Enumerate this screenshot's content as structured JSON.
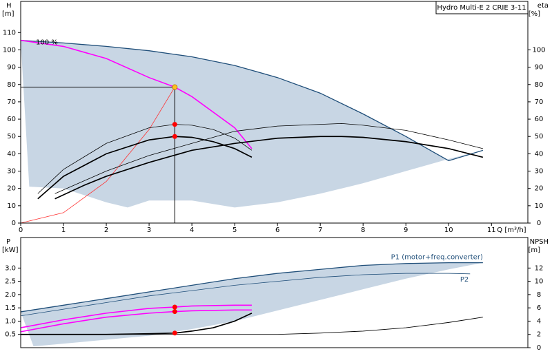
{
  "chart_data": [
    {
      "type": "line",
      "title": "Hydro Multi-E 2 CRIE 3-11",
      "x_label": "Q [m³/h]",
      "y_label": "H",
      "y_unit": "[m]",
      "y2_label": "eta",
      "y2_unit": "[%]",
      "annotation": "100 %",
      "xlim": [
        0,
        11.85
      ],
      "xticks": [
        0,
        1,
        2,
        3,
        4,
        5,
        6,
        7,
        8,
        9,
        10,
        11
      ],
      "ylim": [
        0,
        128
      ],
      "yticks": [
        0,
        10,
        20,
        30,
        40,
        50,
        60,
        70,
        80,
        90,
        100,
        110
      ],
      "y2lim": [
        0,
        128
      ],
      "y2ticks": [
        0,
        10,
        20,
        30,
        40,
        50,
        60,
        70,
        80,
        90,
        100
      ],
      "grid": false,
      "series": [
        {
          "color": "#1f4e79",
          "width": 1.3,
          "band_color": "#c8d6e4",
          "x": [
            0,
            1,
            2,
            3,
            4,
            5,
            6,
            7,
            8,
            9,
            10,
            10.8
          ],
          "values": [
            105.5,
            104,
            102,
            99.5,
            96,
            91,
            84,
            75,
            63,
            50,
            36,
            42
          ],
          "band_x": [
            0.2,
            1,
            2,
            2.5,
            3,
            4,
            5,
            6,
            7,
            8,
            9,
            10,
            10.8
          ],
          "band_lower": [
            21,
            20,
            12,
            9,
            13,
            13,
            9,
            12,
            17,
            23,
            30,
            37,
            42
          ]
        },
        {
          "color": "#ff00ff",
          "width": 1.6,
          "x": [
            0,
            1,
            2,
            3,
            3.6,
            4,
            5,
            5.4
          ],
          "values": [
            105.5,
            102,
            95,
            84,
            78.5,
            73,
            55,
            43
          ]
        },
        {
          "color": "#ff3030",
          "width": 0.8,
          "x": [
            0,
            1,
            2,
            3,
            3.6
          ],
          "values": [
            0,
            6,
            24,
            54,
            78.5
          ]
        },
        {
          "color": "#000000",
          "width": 1.7,
          "axis": "y2",
          "x": [
            0.4,
            1,
            2,
            3,
            3.6,
            4,
            4.5,
            5,
            5.4
          ],
          "values": [
            14,
            27,
            40,
            48,
            50,
            49.5,
            47,
            43,
            38
          ]
        },
        {
          "color": "#000000",
          "width": 0.8,
          "axis": "y2",
          "x": [
            0.4,
            1,
            2,
            3,
            3.6,
            4,
            4.5,
            5,
            5.4
          ],
          "values": [
            17,
            31,
            46,
            55,
            57,
            56.5,
            54,
            49,
            42
          ]
        },
        {
          "color": "#000000",
          "width": 1.7,
          "axis": "y2",
          "x": [
            0.8,
            1.5,
            2,
            3,
            4,
            5,
            6,
            7,
            7.5,
            8,
            9,
            10,
            10.8
          ],
          "values": [
            14,
            22,
            27,
            35,
            42,
            46,
            49,
            50,
            50,
            49.5,
            47,
            43,
            38
          ]
        },
        {
          "color": "#000000",
          "width": 0.8,
          "axis": "y2",
          "x": [
            0.8,
            2,
            3,
            4,
            5,
            6,
            7,
            7.5,
            8,
            9,
            10,
            10.8
          ],
          "values": [
            17,
            30,
            39,
            46,
            53,
            56,
            57,
            57.5,
            56.5,
            53.5,
            48,
            43
          ]
        }
      ],
      "points": [
        {
          "x": 3.6,
          "y": 78.5,
          "color": "#ffc020",
          "guides": true
        },
        {
          "x": 3.6,
          "y": 57,
          "color": "#ff0000",
          "axis": "y2"
        },
        {
          "x": 3.6,
          "y": 50,
          "color": "#ff0000",
          "axis": "y2"
        }
      ]
    },
    {
      "type": "line",
      "y_label": "P",
      "y_unit": "[kW]",
      "y2_label": "NPSH",
      "y2_unit": "[m]",
      "xlim": [
        0,
        11.85
      ],
      "ylim": [
        0,
        4.15
      ],
      "yticks": [
        {
          "value": 0.5,
          "label": "0.5"
        },
        {
          "value": 1,
          "label": "1.0"
        },
        {
          "value": 1.5,
          "label": "1.5"
        },
        {
          "value": 2,
          "label": "2.0"
        },
        {
          "value": 2.5,
          "label": "2.5"
        },
        {
          "value": 3,
          "label": "3.0"
        }
      ],
      "y2lim": [
        0,
        16.6
      ],
      "y2ticks": [
        0,
        2,
        4,
        6,
        8,
        10,
        12
      ],
      "grid": false,
      "series": [
        {
          "name": "P1 (motor+freq.converter)",
          "color": "#1f4e79",
          "width": 1.3,
          "band_color": "#c8d6e4",
          "x": [
            0,
            1,
            2,
            3,
            4,
            5,
            6,
            7,
            8,
            9,
            10,
            10.8
          ],
          "values": [
            1.35,
            1.6,
            1.85,
            2.1,
            2.35,
            2.6,
            2.8,
            2.95,
            3.1,
            3.17,
            3.2,
            3.2
          ],
          "band_x": [
            0.3,
            2,
            3,
            4,
            5,
            6,
            7,
            8,
            9,
            10,
            10.8
          ],
          "band_lower": [
            0.05,
            0.3,
            0.45,
            0.7,
            1.0,
            1.4,
            1.8,
            2.2,
            2.6,
            2.95,
            3.2
          ]
        },
        {
          "name": "P2",
          "color": "#1f4e79",
          "width": 0.8,
          "x": [
            0,
            1,
            2,
            3,
            4,
            5,
            6,
            7,
            8,
            9,
            10,
            10.5
          ],
          "values": [
            1.2,
            1.45,
            1.7,
            1.95,
            2.15,
            2.35,
            2.5,
            2.65,
            2.75,
            2.8,
            2.8,
            2.78
          ]
        },
        {
          "color": "#ff00ff",
          "width": 1.6,
          "x": [
            0,
            1,
            2,
            3,
            3.6,
            4,
            5,
            5.4
          ],
          "values": [
            0.75,
            1.05,
            1.3,
            1.48,
            1.53,
            1.57,
            1.6,
            1.6
          ]
        },
        {
          "color": "#ff00ff",
          "width": 1.6,
          "x": [
            0,
            1,
            2,
            3,
            3.6,
            4,
            5,
            5.4
          ],
          "values": [
            0.6,
            0.9,
            1.15,
            1.3,
            1.36,
            1.39,
            1.42,
            1.42
          ]
        },
        {
          "color": "#000000",
          "width": 1.7,
          "axis": "y2",
          "x": [
            0,
            1,
            2,
            3,
            3.6,
            4,
            4.5,
            5,
            5.4
          ],
          "values": [
            2,
            2,
            2,
            2.1,
            2.2,
            2.5,
            3,
            4,
            5.2
          ]
        },
        {
          "color": "#000000",
          "width": 0.9,
          "axis": "y2",
          "x": [
            0,
            2,
            4,
            6,
            7,
            8,
            9,
            10,
            10.8
          ],
          "values": [
            2,
            2,
            2,
            2,
            2.2,
            2.5,
            3,
            3.8,
            4.6
          ]
        }
      ],
      "points": [
        {
          "x": 3.6,
          "y": 1.53,
          "color": "#ff0000"
        },
        {
          "x": 3.6,
          "y": 1.36,
          "color": "#ff0000"
        },
        {
          "x": 3.6,
          "y": 2.2,
          "color": "#ff0000",
          "axis": "y2"
        }
      ]
    }
  ]
}
